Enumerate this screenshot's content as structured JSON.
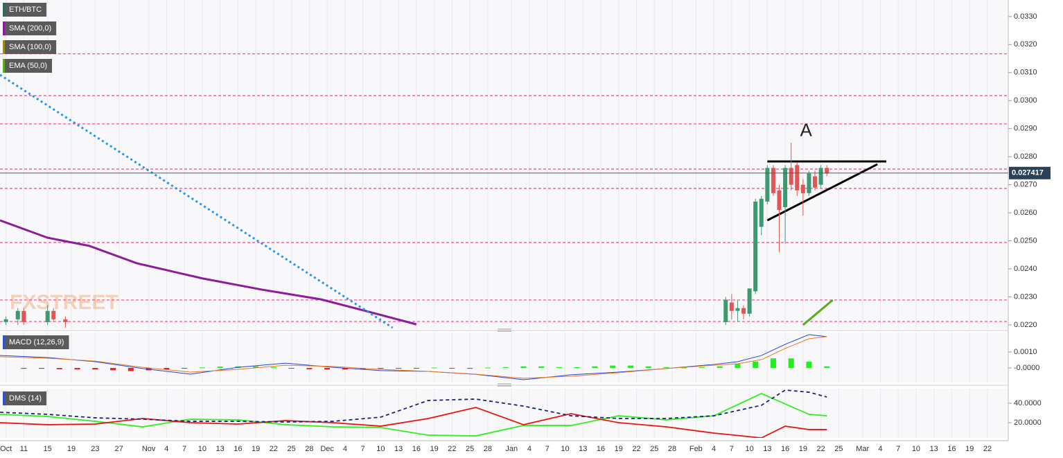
{
  "chart_data": [
    {
      "type": "candlestick",
      "xlim": [
        6,
        175.5
      ],
      "ylim": [
        0.02185,
        0.03359
      ],
      "yticks": [
        {
          "value": 0.033,
          "label": "0.0330"
        },
        {
          "value": 0.032,
          "label": "0.0320"
        },
        {
          "value": 0.031,
          "label": "0.0310"
        },
        {
          "value": 0.03,
          "label": "0.0300"
        },
        {
          "value": 0.029,
          "label": "0.0290"
        },
        {
          "value": 0.028,
          "label": "0.0280"
        },
        {
          "value": 0.027,
          "label": "0.0270"
        },
        {
          "value": 0.026,
          "label": "0.0260"
        },
        {
          "value": 0.025,
          "label": "0.0250"
        },
        {
          "value": 0.024,
          "label": "0.0240"
        },
        {
          "value": 0.023,
          "label": "0.0230"
        },
        {
          "value": 0.022,
          "label": "0.0220"
        }
      ],
      "watermark": "FXSTREET",
      "candles": {
        "name": "ETH/BTC",
        "color": "#2e6b5e",
        "up_color": "#3d9970",
        "down_color": "#e05555",
        "x": [
          7,
          9,
          10,
          14,
          15,
          17,
          128,
          129,
          130,
          131,
          132,
          133,
          134,
          135,
          136,
          137,
          138,
          139,
          140,
          141,
          142,
          143,
          144,
          145
        ],
        "open": [
          0.0221,
          0.0222,
          0.0225,
          0.0221,
          0.0225,
          0.0222,
          0.0221,
          0.0228,
          0.0225,
          0.0226,
          0.0224,
          0.0232,
          0.0255,
          0.0264,
          0.0276,
          0.0268,
          0.0262,
          0.0276,
          0.0277,
          0.027,
          0.0267,
          0.0273,
          0.027,
          0.0276
        ],
        "high": [
          0.0223,
          0.0226,
          0.0226,
          0.0227,
          0.0226,
          0.0223,
          0.023,
          0.0231,
          0.0229,
          0.0227,
          0.0233,
          0.0265,
          0.0266,
          0.0277,
          0.0277,
          0.027,
          0.0277,
          0.0285,
          0.0278,
          0.0272,
          0.0275,
          0.0275,
          0.0277,
          0.0277
        ],
        "low": [
          0.022,
          0.022,
          0.022,
          0.022,
          0.0221,
          0.0219,
          0.022,
          0.0222,
          0.0221,
          0.0222,
          0.0223,
          0.0231,
          0.0252,
          0.0263,
          0.0266,
          0.0246,
          0.0249,
          0.0268,
          0.0266,
          0.0259,
          0.0266,
          0.0268,
          0.0269,
          0.0273
        ],
        "close": [
          0.0222,
          0.0225,
          0.0221,
          0.0225,
          0.0222,
          0.0221,
          0.0229,
          0.0225,
          0.0226,
          0.0224,
          0.0233,
          0.0264,
          0.0265,
          0.0276,
          0.0267,
          0.0261,
          0.0276,
          0.027,
          0.0268,
          0.0267,
          0.0274,
          0.0269,
          0.0276,
          0.0274
        ]
      },
      "series": [
        {
          "name": "SMA (200,0)",
          "color": "#8e1a9c",
          "x": [
            6,
            14,
            21,
            29,
            40,
            50,
            60,
            68,
            76
          ],
          "values": [
            0.02573,
            0.02511,
            0.02482,
            0.0242,
            0.02366,
            0.02326,
            0.02291,
            0.02247,
            0.02202
          ]
        },
        {
          "name": "SMA (100,0)",
          "color": "#a08a1c",
          "x": [],
          "values": []
        },
        {
          "name": "EMA (50,0)",
          "color": "#5aab1e",
          "x": [
            141,
            146
          ],
          "values": [
            0.022,
            0.02289
          ]
        }
      ],
      "levels": {
        "color": "#ff3d8b",
        "values": [
          0.03167,
          0.03018,
          0.02917,
          0.02756,
          0.02687,
          0.02494,
          0.02289,
          0.02212
        ]
      },
      "trendlines": [
        {
          "color": "#2196f3",
          "style": "dotted",
          "x": [
            6,
            72
          ],
          "values": [
            0.03092,
            0.0219
          ]
        },
        {
          "color": "#000000",
          "style": "solid",
          "x": [
            135,
            155
          ],
          "values": [
            0.02783,
            0.02783
          ]
        },
        {
          "color": "#000000",
          "style": "solid",
          "x": [
            135,
            153.5
          ],
          "values": [
            0.02573,
            0.02773
          ]
        }
      ],
      "annotation": {
        "text": "A",
        "x": 141.5,
        "y": 0.0289
      },
      "last_price": 0.027417
    },
    {
      "type": "macd",
      "title": "MACD (12,26,9)",
      "xlim": [
        6,
        175.5
      ],
      "ylim": [
        -0.000913,
        0.002217
      ],
      "yticks": [
        {
          "value": 0.001,
          "label": "0.0010"
        },
        {
          "value": 0,
          "label": "-0.0000"
        }
      ],
      "histogram": {
        "up_color": "#22ee22",
        "down_color": "#ee2222",
        "x": [
          10,
          13,
          16,
          19,
          22,
          25,
          28,
          31,
          34,
          37,
          40,
          43,
          46,
          49,
          52,
          55,
          58,
          61,
          64,
          67,
          70,
          73,
          76,
          79,
          82,
          85,
          88,
          91,
          94,
          97,
          100,
          103,
          106,
          109,
          112,
          115,
          118,
          121,
          124,
          127,
          130,
          133,
          136,
          139,
          142,
          145
        ],
        "values": [
          -5e-05,
          -5e-05,
          -8e-05,
          -0.0001,
          -0.0001,
          -0.00015,
          -0.0002,
          -0.00015,
          -0.0001,
          -3e-05,
          3e-05,
          8e-05,
          0.0001,
          0.0001,
          5e-05,
          -3e-05,
          -8e-05,
          -0.0001,
          -0.0001,
          -8e-05,
          -5e-05,
          -3e-05,
          -2e-05,
          2e-05,
          -2e-05,
          -2e-05,
          2e-05,
          5e-05,
          0.0001,
          0.0001,
          5e-05,
          5e-05,
          0.0001,
          0.00015,
          0.00015,
          0.0001,
          5e-05,
          2e-05,
          5e-05,
          0.0001,
          0.00025,
          0.0004,
          0.0006,
          0.0006,
          0.0004,
          0.0001
        ]
      },
      "series": [
        {
          "color": "#2244dd",
          "x": [
            6,
            14,
            22,
            30,
            38,
            46,
            54,
            62,
            70,
            78,
            86,
            94,
            102,
            110,
            118,
            126,
            130,
            134,
            138,
            142,
            145
          ],
          "values": [
            0.00078,
            0.00065,
            0.00039,
            -4e-05,
            -0.00039,
            4e-05,
            0.0003,
            4e-05,
            -0.00017,
            -0.00022,
            -0.0004,
            -0.00074,
            -0.00043,
            -0.00026,
            -4e-05,
            0.00022,
            0.00039,
            0.00078,
            0.00148,
            0.00209,
            0.00196
          ]
        },
        {
          "color": "#ee7722",
          "x": [
            6,
            14,
            22,
            30,
            38,
            46,
            54,
            62,
            70,
            78,
            86,
            94,
            102,
            110,
            118,
            126,
            130,
            134,
            138,
            142,
            145
          ],
          "values": [
            0.0007,
            0.00061,
            0.00043,
            4e-05,
            -0.00026,
            -9e-05,
            0.00017,
            9e-05,
            -9e-05,
            -0.00022,
            -0.00039,
            -0.00065,
            -0.00052,
            -0.0003,
            -4e-05,
            0.00017,
            0.00026,
            0.00052,
            0.00122,
            0.00183,
            0.00196
          ]
        }
      ]
    },
    {
      "type": "line",
      "title": "DMS (14)",
      "xlim": [
        6,
        175.5
      ],
      "ylim": [
        4.3,
        55
      ],
      "yticks": [
        {
          "value": 40,
          "label": "40.0000"
        },
        {
          "value": 20,
          "label": "20.0000"
        }
      ],
      "xticks": [
        {
          "value": 7,
          "label": "Oct"
        },
        {
          "value": 10,
          "label": "11"
        },
        {
          "value": 14,
          "label": "15"
        },
        {
          "value": 18,
          "label": "19"
        },
        {
          "value": 22,
          "label": "23"
        },
        {
          "value": 26,
          "label": "27"
        },
        {
          "value": 31,
          "label": "Nov"
        },
        {
          "value": 34,
          "label": "4"
        },
        {
          "value": 37,
          "label": "7"
        },
        {
          "value": 40,
          "label": "10"
        },
        {
          "value": 43,
          "label": "13"
        },
        {
          "value": 46,
          "label": "16"
        },
        {
          "value": 49,
          "label": "19"
        },
        {
          "value": 52,
          "label": "22"
        },
        {
          "value": 55,
          "label": "25"
        },
        {
          "value": 58,
          "label": "28"
        },
        {
          "value": 61,
          "label": "Dec"
        },
        {
          "value": 64,
          "label": "4"
        },
        {
          "value": 67,
          "label": "7"
        },
        {
          "value": 70,
          "label": "10"
        },
        {
          "value": 73,
          "label": "13"
        },
        {
          "value": 76,
          "label": "16"
        },
        {
          "value": 79,
          "label": "19"
        },
        {
          "value": 82,
          "label": "22"
        },
        {
          "value": 85,
          "label": "25"
        },
        {
          "value": 88,
          "label": "28"
        },
        {
          "value": 92,
          "label": "Jan"
        },
        {
          "value": 95,
          "label": "4"
        },
        {
          "value": 98,
          "label": "7"
        },
        {
          "value": 101,
          "label": "10"
        },
        {
          "value": 104,
          "label": "13"
        },
        {
          "value": 107,
          "label": "16"
        },
        {
          "value": 110,
          "label": "19"
        },
        {
          "value": 113,
          "label": "22"
        },
        {
          "value": 116,
          "label": "25"
        },
        {
          "value": 119,
          "label": "28"
        },
        {
          "value": 123,
          "label": "Feb"
        },
        {
          "value": 126,
          "label": "4"
        },
        {
          "value": 129,
          "label": "7"
        },
        {
          "value": 132,
          "label": "10"
        },
        {
          "value": 135,
          "label": "13"
        },
        {
          "value": 138,
          "label": "16"
        },
        {
          "value": 141,
          "label": "19"
        },
        {
          "value": 144,
          "label": "22"
        },
        {
          "value": 147,
          "label": "25"
        },
        {
          "value": 151,
          "label": "Mar"
        },
        {
          "value": 154,
          "label": "4"
        },
        {
          "value": 157,
          "label": "7"
        },
        {
          "value": 160,
          "label": "10"
        },
        {
          "value": 163,
          "label": "13"
        },
        {
          "value": 166,
          "label": "16"
        },
        {
          "value": 169,
          "label": "19"
        },
        {
          "value": 172,
          "label": "22"
        }
      ],
      "series": [
        {
          "color": "#33ee22",
          "style": "solid",
          "x": [
            6,
            14,
            22,
            30,
            38,
            46,
            54,
            62,
            70,
            78,
            86,
            94,
            102,
            110,
            118,
            126,
            134,
            138,
            142,
            145
          ],
          "values": [
            28.6,
            26.4,
            21.4,
            15.7,
            23.6,
            22.9,
            17.9,
            15.7,
            15,
            7.1,
            6.4,
            17.1,
            17.1,
            27.1,
            22.9,
            27.1,
            50,
            39.3,
            28.6,
            27.1
          ]
        },
        {
          "color": "#ee1111",
          "style": "solid",
          "x": [
            6,
            14,
            22,
            30,
            38,
            46,
            54,
            62,
            70,
            78,
            86,
            94,
            102,
            110,
            118,
            126,
            134,
            138,
            142,
            145
          ],
          "values": [
            20,
            17.9,
            18.6,
            24.3,
            20,
            18.6,
            22.1,
            20,
            16.4,
            24.3,
            35.7,
            17.9,
            29.3,
            20,
            15.7,
            9.3,
            4.3,
            16.4,
            12.9,
            12.9
          ]
        },
        {
          "color": "#1a237e",
          "style": "dashed",
          "x": [
            6,
            14,
            22,
            30,
            38,
            46,
            54,
            62,
            70,
            78,
            86,
            94,
            102,
            110,
            118,
            126,
            134,
            138,
            142,
            145
          ],
          "values": [
            30.7,
            28.6,
            25,
            23.6,
            21.4,
            21.4,
            20.7,
            21.4,
            25.7,
            42.9,
            44.3,
            37.1,
            27.1,
            24.3,
            24.3,
            27.1,
            37.9,
            53.6,
            51.4,
            46.4
          ]
        }
      ]
    }
  ]
}
